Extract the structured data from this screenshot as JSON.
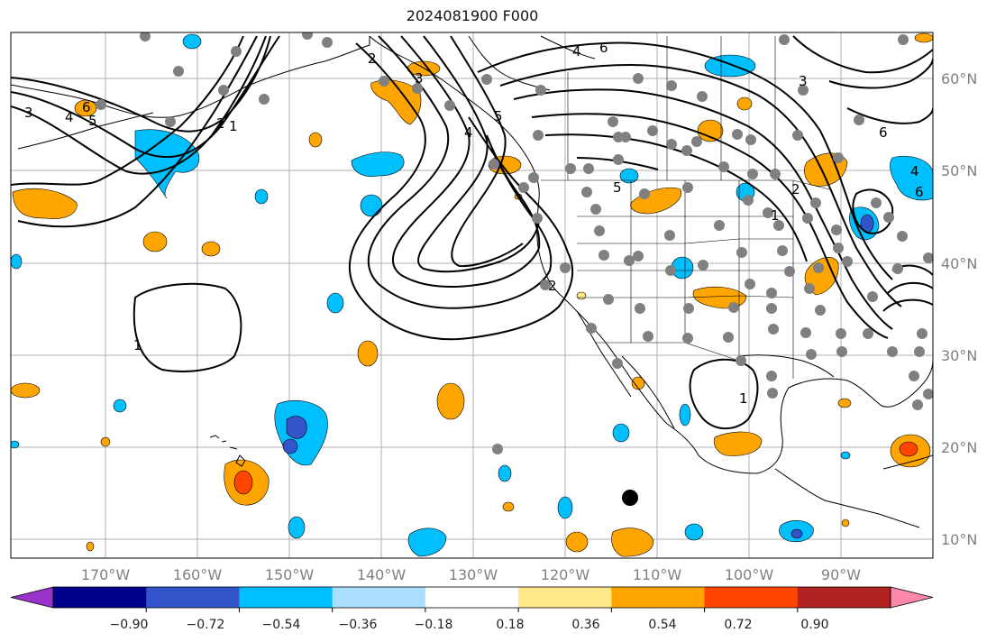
{
  "title": "2024081900 F000",
  "lat_labels": [
    "60°N",
    "50°N",
    "40°N",
    "30°N",
    "20°N",
    "10°N"
  ],
  "lon_labels": [
    "170°W",
    "160°W",
    "150°W",
    "140°W",
    "130°W",
    "120°W",
    "110°W",
    "100°W",
    "90°W"
  ],
  "contour_labels": [
    "3",
    "4",
    "5",
    "6",
    "2",
    "1",
    "2",
    "3",
    "4",
    "5",
    "6",
    "4",
    "5",
    "6",
    "2",
    "1",
    "1",
    "1",
    "2",
    "3",
    "6",
    "4"
  ],
  "colorbar": {
    "tick_labels": [
      "−0.90",
      "−0.72",
      "−0.54",
      "−0.36",
      "−0.18",
      "0.18",
      "0.36",
      "0.54",
      "0.72",
      "0.90"
    ],
    "colors": [
      "#9933cc",
      "#00008b",
      "#3355cc",
      "#00bfff",
      "#aadfff",
      "#ffffff",
      "#ffe98a",
      "#ffa500",
      "#ff4500",
      "#b22222",
      "#ff88aa"
    ]
  },
  "colors": {
    "light_blue": "#00bfff",
    "mid_blue": "#3355cc",
    "orange": "#ffa500",
    "red_orange": "#ff4500",
    "station": "#808080",
    "contour": "#000000",
    "grid": "#b0b0b0"
  }
}
